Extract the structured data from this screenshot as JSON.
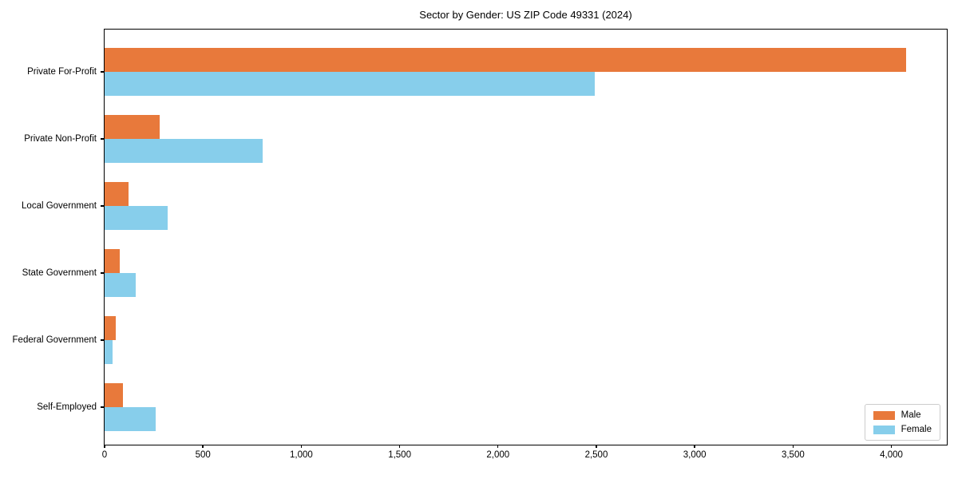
{
  "chart_data": {
    "type": "bar",
    "orientation": "horizontal",
    "title": "Sector by Gender: US ZIP Code 49331 (2024)",
    "categories": [
      "Private For-Profit",
      "Private Non-Profit",
      "Local Government",
      "State Government",
      "Federal Government",
      "Self-Employed"
    ],
    "series": [
      {
        "name": "Male",
        "color": "#E8793B",
        "values": [
          4075,
          280,
          120,
          75,
          55,
          95
        ]
      },
      {
        "name": "Female",
        "color": "#87CEEB",
        "values": [
          2490,
          805,
          320,
          160,
          40,
          260
        ]
      }
    ],
    "xlim": [
      0,
      4290
    ],
    "xticks": [
      0,
      500,
      1000,
      1500,
      2000,
      2500,
      3000,
      3500,
      4000
    ],
    "xtick_labels": [
      "0",
      "500",
      "1,000",
      "1,500",
      "2,000",
      "2,500",
      "3,000",
      "3,500",
      "4,000"
    ],
    "ylabel": "",
    "xlabel": "",
    "grid": false,
    "legend_position": "lower right",
    "legend_entries": [
      "Male",
      "Female"
    ]
  }
}
